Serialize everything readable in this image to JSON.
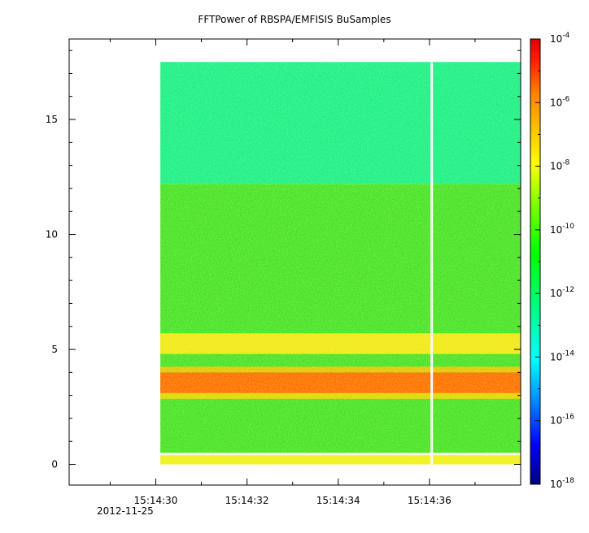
{
  "chart_data": {
    "type": "heatmap",
    "title": "FFTPower of RBSPA/EMFISIS  BuSamples",
    "xlabel": "",
    "ylabel": "",
    "x_ticks": [
      "15:14:30",
      "15:14:32",
      "15:14:34",
      "15:14:36"
    ],
    "x_tick_seconds": [
      30,
      32,
      34,
      36
    ],
    "x_date_label": "2012-11-25",
    "xlim_seconds": [
      28.1,
      38.0
    ],
    "data_x_range_seconds": [
      30.1,
      38.0
    ],
    "gap_at_seconds": 36.05,
    "y_ticks": [
      0,
      5,
      10,
      15
    ],
    "ylim": [
      -0.9,
      18.5
    ],
    "data_y_range": [
      0,
      17.5
    ],
    "colorbar": {
      "scale": "log",
      "range": [
        "1e-18",
        "1e-4"
      ],
      "tick_base": "10",
      "tick_exponents": [
        "-4",
        "-6",
        "-8",
        "-10",
        "-12",
        "-14",
        "-16",
        "-18"
      ],
      "colormap": [
        "#00007f",
        "#0000ff",
        "#00bfff",
        "#00ffff",
        "#00ff80",
        "#00ff00",
        "#80ff00",
        "#ffff00",
        "#ffbf00",
        "#ff8000",
        "#ff0000",
        "#e00000"
      ]
    },
    "bands": [
      {
        "y_range": [
          12.2,
          17.5
        ],
        "level": "1e-12",
        "color": "#19ef7a"
      },
      {
        "y_range": [
          0.5,
          12.2
        ],
        "level": "1e-10",
        "color": "#3fe22a"
      },
      {
        "y_range": [
          4.8,
          5.7
        ],
        "level": "1e-8",
        "color": "#f0e81a"
      },
      {
        "y_range": [
          3.1,
          4.0
        ],
        "level": "1e-6",
        "color": "#ff6a00"
      },
      {
        "y_range": [
          0.0,
          0.4
        ],
        "level": "1e-8",
        "color": "#f0f020"
      }
    ]
  }
}
